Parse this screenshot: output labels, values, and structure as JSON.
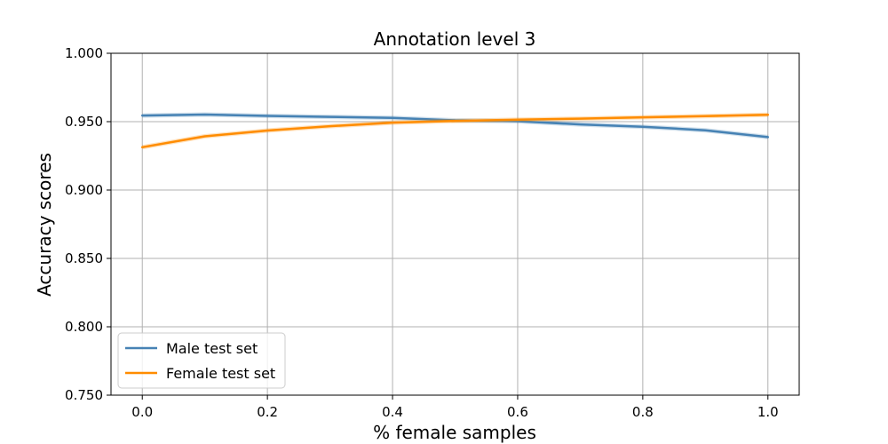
{
  "chart_data": {
    "type": "line",
    "title": "Annotation level 3",
    "xlabel": "% female samples",
    "ylabel": "Accuracy scores",
    "xlim": [
      -0.05,
      1.05
    ],
    "ylim": [
      0.75,
      1.0
    ],
    "x_ticks": [
      "0.0",
      "0.2",
      "0.4",
      "0.6",
      "0.8",
      "1.0"
    ],
    "x_tick_values": [
      0.0,
      0.2,
      0.4,
      0.6,
      0.8,
      1.0
    ],
    "y_ticks": [
      "0.750",
      "0.800",
      "0.850",
      "0.900",
      "0.950",
      "1.000"
    ],
    "y_tick_values": [
      0.75,
      0.8,
      0.85,
      0.9,
      0.95,
      1.0
    ],
    "grid": true,
    "legend_position": "lower-left",
    "x": [
      0.0,
      0.1,
      0.2,
      0.3,
      0.4,
      0.5,
      0.6,
      0.7,
      0.8,
      0.9,
      1.0
    ],
    "series": [
      {
        "name": "Male test set",
        "color": "#4682b4",
        "values": [
          0.9545,
          0.9552,
          0.9542,
          0.9535,
          0.9528,
          0.951,
          0.9503,
          0.948,
          0.9463,
          0.9437,
          0.9387
        ]
      },
      {
        "name": "Female test set",
        "color": "#ff8c00",
        "values": [
          0.9313,
          0.9393,
          0.9435,
          0.9467,
          0.9493,
          0.9505,
          0.9515,
          0.9522,
          0.9532,
          0.954,
          0.955
        ]
      }
    ]
  }
}
